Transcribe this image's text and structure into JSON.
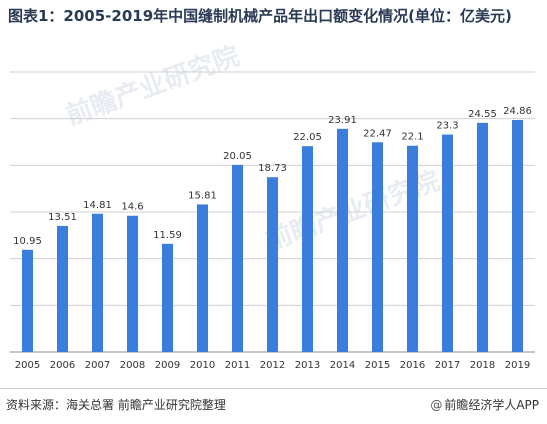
{
  "title": "图表1：2005-2019年中国缝制机械产品年出口额变化情况(单位：亿美元)",
  "source": "资料来源：海关总署 前瞻产业研究院整理",
  "brand": "前瞻经济学人APP",
  "brand_icon": "at-icon",
  "watermark": "前瞻产业研究院",
  "colors": {
    "bar": "#3b7ddd",
    "grid": "#d0d0d0",
    "title": "#2a3a55"
  },
  "chart_data": {
    "type": "bar",
    "categories": [
      "2005",
      "2006",
      "2007",
      "2008",
      "2009",
      "2010",
      "2011",
      "2012",
      "2013",
      "2014",
      "2015",
      "2016",
      "2017",
      "2018",
      "2019"
    ],
    "values": [
      10.95,
      13.51,
      14.81,
      14.6,
      11.59,
      15.81,
      20.05,
      18.73,
      22.05,
      23.91,
      22.47,
      22.1,
      23.3,
      24.55,
      24.86
    ],
    "value_labels": [
      "10.95",
      "13.51",
      "14.81",
      "14.6",
      "11.59",
      "15.81",
      "20.05",
      "18.73",
      "22.05",
      "23.91",
      "22.47",
      "22.1",
      "23.3",
      "24.55",
      "24.86"
    ],
    "title": "图表1：2005-2019年中国缝制机械产品年出口额变化情况(单位：亿美元)",
    "xlabel": "",
    "ylabel": "",
    "ylim": [
      0,
      30
    ],
    "grid": true,
    "legend": "none"
  }
}
